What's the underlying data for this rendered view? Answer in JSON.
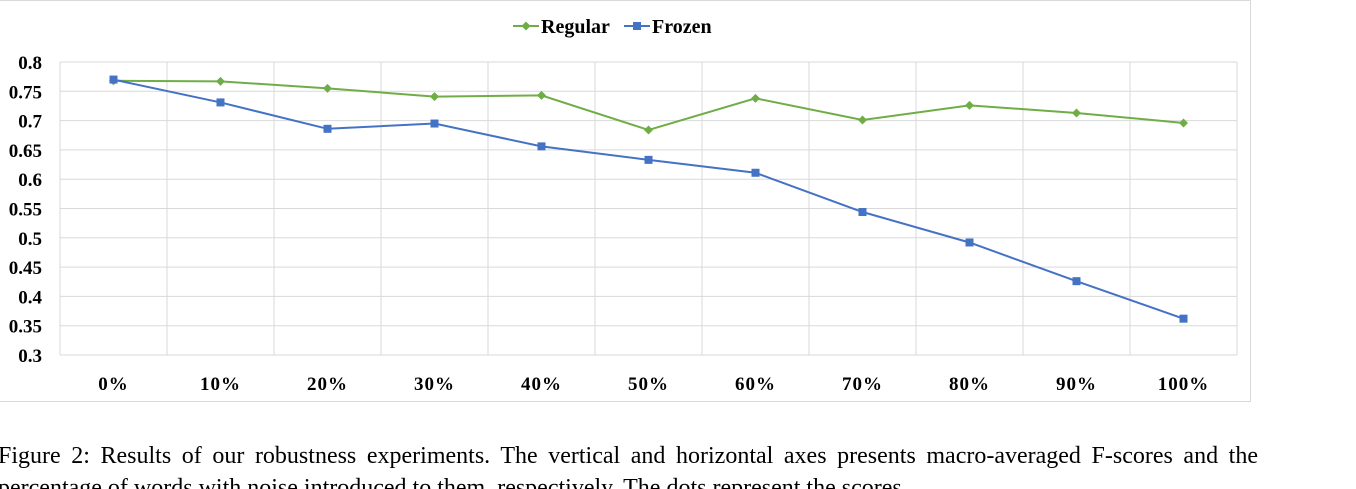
{
  "chart_data": {
    "type": "line",
    "categories": [
      "0%",
      "10%",
      "20%",
      "30%",
      "40%",
      "50%",
      "60%",
      "70%",
      "80%",
      "90%",
      "100%"
    ],
    "series": [
      {
        "name": "Regular",
        "color": "#70ad47",
        "marker": "diamond",
        "values": [
          0.768,
          0.767,
          0.755,
          0.741,
          0.743,
          0.684,
          0.738,
          0.701,
          0.726,
          0.713,
          0.696
        ]
      },
      {
        "name": "Frozen",
        "color": "#4472c4",
        "marker": "square",
        "values": [
          0.77,
          0.731,
          0.686,
          0.695,
          0.656,
          0.633,
          0.611,
          0.544,
          0.492,
          0.426,
          0.362
        ]
      }
    ],
    "ylim": [
      0.3,
      0.8
    ],
    "yticks": [
      "0.3",
      "0.35",
      "0.4",
      "0.45",
      "0.5",
      "0.55",
      "0.6",
      "0.65",
      "0.7",
      "0.75",
      "0.8"
    ],
    "grid": true,
    "legend_position": "top-center",
    "gridline_color": "#d9d9d9"
  },
  "caption": {
    "text": "Figure 2: Results of our robustness experiments. The vertical and horizontal axes presents macro-averaged F-scores and the percentage of words with noise introduced to them, respectively. The dots represent the scores"
  }
}
